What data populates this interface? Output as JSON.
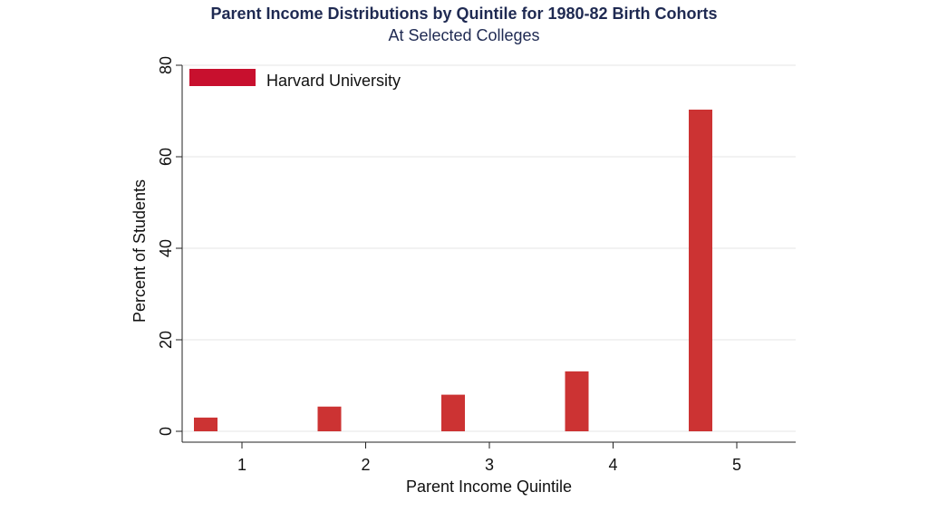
{
  "chart_data": {
    "type": "bar",
    "title": "Parent Income Distributions by Quintile for 1980-82 Birth Cohorts",
    "subtitle": "At Selected Colleges",
    "xlabel": "Parent Income Quintile",
    "ylabel": "Percent of Students",
    "categories": [
      "1",
      "2",
      "3",
      "4",
      "5"
    ],
    "y_ticks": [
      "0",
      "20",
      "40",
      "60",
      "80"
    ],
    "ylim": [
      0,
      80
    ],
    "grid": true,
    "legend_position": "top-left",
    "series": [
      {
        "name": "Harvard University",
        "color": "#cc3333",
        "values": [
          3.0,
          5.4,
          8.0,
          13.1,
          70.3
        ]
      }
    ],
    "legend_swatch_color": "#c8102e"
  }
}
